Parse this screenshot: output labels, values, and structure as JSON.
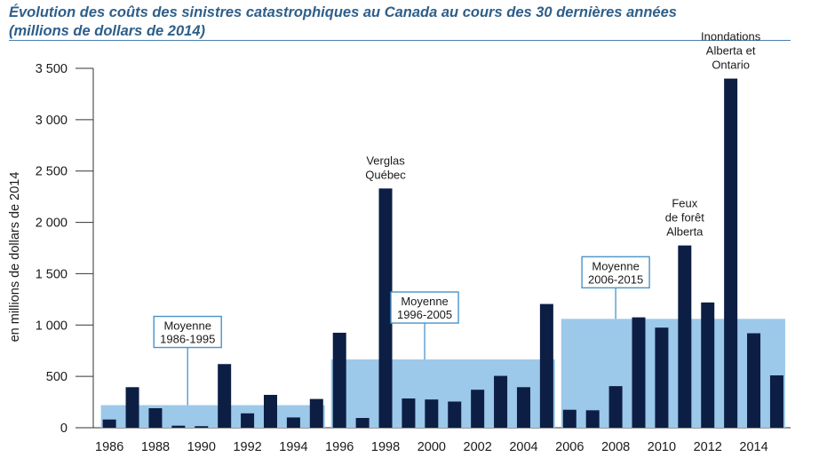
{
  "chart_data": {
    "type": "bar",
    "title_line1": "Évolution des coûts des sinistres catastrophiques au Canada au cours des 30 dernières années",
    "title_line2": "(millions de dollars de 2014)",
    "ylabel": "en millions de dollars de 2014",
    "ylim": [
      0,
      3500
    ],
    "xlim": [
      1985.3,
      2015.6
    ],
    "yticks": [
      0,
      500,
      1000,
      1500,
      2000,
      2500,
      3000,
      3500
    ],
    "ytick_labels": [
      "0",
      "500",
      "1 000",
      "1 500",
      "2 000",
      "2 500",
      "3 000",
      "3 500"
    ],
    "xtick_years": [
      1986,
      1988,
      1990,
      1992,
      1994,
      1996,
      1998,
      2000,
      2002,
      2004,
      2006,
      2008,
      2010,
      2012,
      2014
    ],
    "xtick_labels": [
      "1986",
      "1988",
      "1990",
      "1992",
      "1994",
      "1996",
      "1998",
      "2000",
      "2002",
      "2004",
      "2006",
      "2008",
      "2010",
      "2012",
      "2014"
    ],
    "bar_color": "#0d1e45",
    "average_color": "#9cc8ea",
    "callout_border_color": "#4a93c9",
    "years": [
      1986,
      1987,
      1988,
      1989,
      1990,
      1991,
      1992,
      1993,
      1994,
      1995,
      1996,
      1997,
      1998,
      1999,
      2000,
      2001,
      2002,
      2003,
      2004,
      2005,
      2006,
      2007,
      2008,
      2009,
      2010,
      2011,
      2012,
      2013,
      2014,
      2015
    ],
    "values": [
      80,
      395,
      190,
      20,
      15,
      620,
      140,
      320,
      100,
      280,
      925,
      95,
      2330,
      285,
      275,
      255,
      370,
      505,
      395,
      1205,
      175,
      170,
      405,
      1075,
      975,
      1775,
      1220,
      3400,
      920,
      510
    ],
    "averages": [
      {
        "label_line1": "Moyenne",
        "label_line2": "1986-1995",
        "from": 1986,
        "to": 1995,
        "value": 220
      },
      {
        "label_line1": "Moyenne",
        "label_line2": "1996-2005",
        "from": 1996,
        "to": 2005,
        "value": 665
      },
      {
        "label_line1": "Moyenne",
        "label_line2": "2006-2015",
        "from": 2006,
        "to": 2015,
        "value": 1060
      }
    ],
    "annotations": [
      {
        "lines": [
          "Verglas",
          "Québec"
        ],
        "year": 1998,
        "value": 2330
      },
      {
        "lines": [
          "Feux",
          "de forêt",
          "Alberta"
        ],
        "year": 2011,
        "value": 1775
      },
      {
        "lines": [
          "Inondations",
          "Alberta et",
          "Ontario"
        ],
        "year": 2013,
        "value": 3400
      }
    ]
  }
}
